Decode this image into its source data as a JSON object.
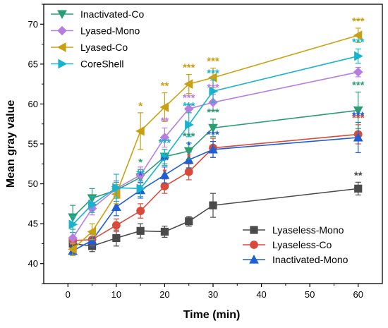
{
  "chart_data": {
    "type": "line",
    "title": "",
    "xlabel": "Time (min)",
    "ylabel": "Mean gray value",
    "xlim": [
      -5,
      65
    ],
    "ylim": [
      37.5,
      72.5
    ],
    "xticks": [
      0,
      10,
      20,
      30,
      40,
      50,
      60
    ],
    "yticks": [
      40,
      45,
      50,
      55,
      60,
      65,
      70
    ],
    "x": [
      1,
      5,
      10,
      15,
      20,
      25,
      30,
      60
    ],
    "legends": [
      {
        "position": "top-left",
        "entries": [
          "Inactivated-Co",
          "Lyased-Mono",
          "Lyased-Co",
          "CoreShell"
        ]
      },
      {
        "position": "bottom-right",
        "entries": [
          "Lyaseless-Mono",
          "Lyaseless-Co",
          "Inactivated-Mono"
        ]
      }
    ],
    "series": [
      {
        "name": "Lyaseless-Mono",
        "color": "#4a4a4a",
        "marker": "square",
        "values": [
          42.5,
          42.2,
          43.2,
          44.1,
          44.0,
          45.3,
          47.3,
          49.4
        ],
        "errors": [
          0.5,
          0.7,
          1.0,
          0.9,
          0.7,
          0.6,
          1.5,
          0.8
        ],
        "sig": [
          null,
          null,
          null,
          null,
          null,
          null,
          null,
          "**"
        ]
      },
      {
        "name": "Lyaseless-Co",
        "color": "#d94a3a",
        "marker": "circle",
        "values": [
          42.9,
          43.0,
          44.8,
          46.6,
          49.7,
          51.5,
          54.5,
          56.2
        ],
        "errors": [
          0.5,
          0.7,
          0.8,
          0.9,
          0.9,
          1.0,
          1.2,
          1.2
        ],
        "sig": [
          null,
          null,
          null,
          null,
          "*",
          "*",
          null,
          "***"
        ]
      },
      {
        "name": "Inactivated-Mono",
        "color": "#1e5fd4",
        "marker": "triangle-up",
        "values": [
          41.6,
          42.9,
          47.1,
          49.2,
          51.1,
          53.0,
          54.3,
          55.8
        ],
        "errors": [
          0.6,
          0.8,
          1.1,
          1.0,
          1.0,
          1.0,
          1.0,
          1.9
        ],
        "sig": [
          null,
          null,
          null,
          "*",
          "**",
          "*",
          "***",
          "***"
        ]
      },
      {
        "name": "Inactivated-Co",
        "color": "#2a9e72",
        "marker": "triangle-down",
        "values": [
          45.8,
          48.2,
          49.2,
          50.8,
          53.4,
          54.1,
          57.0,
          59.2
        ],
        "errors": [
          1.5,
          1.2,
          1.0,
          1.0,
          0.9,
          1.0,
          1.1,
          2.3
        ],
        "sig": [
          null,
          null,
          null,
          "*",
          "***",
          "***",
          "***",
          "***"
        ]
      },
      {
        "name": "Lyased-Mono",
        "color": "#b77ee0",
        "marker": "diamond",
        "values": [
          43.2,
          46.9,
          49.4,
          51.1,
          55.8,
          59.4,
          60.2,
          64.0
        ],
        "errors": [
          0.7,
          0.8,
          1.0,
          1.0,
          1.2,
          0.5,
          1.0,
          0.6
        ],
        "sig": [
          null,
          null,
          null,
          null,
          "**",
          "***",
          "***",
          null
        ]
      },
      {
        "name": "Lyased-Co",
        "color": "#c9a012",
        "marker": "triangle-left",
        "values": [
          41.8,
          44.0,
          48.7,
          56.6,
          59.6,
          62.5,
          63.3,
          68.6
        ],
        "errors": [
          0.8,
          1.0,
          1.2,
          2.3,
          1.8,
          1.2,
          1.2,
          0.9
        ],
        "sig": [
          null,
          null,
          null,
          "*",
          "**",
          "***",
          "***",
          "***"
        ]
      },
      {
        "name": "CoreShell",
        "color": "#18b3cc",
        "marker": "triangle-right",
        "values": [
          44.9,
          47.4,
          49.5,
          49.4,
          53.3,
          57.4,
          61.6,
          66.0
        ],
        "errors": [
          1.0,
          1.0,
          1.7,
          1.0,
          1.0,
          1.5,
          1.4,
          0.9
        ],
        "sig": [
          null,
          null,
          null,
          "**",
          "***",
          "***",
          "***",
          "***"
        ]
      }
    ]
  }
}
